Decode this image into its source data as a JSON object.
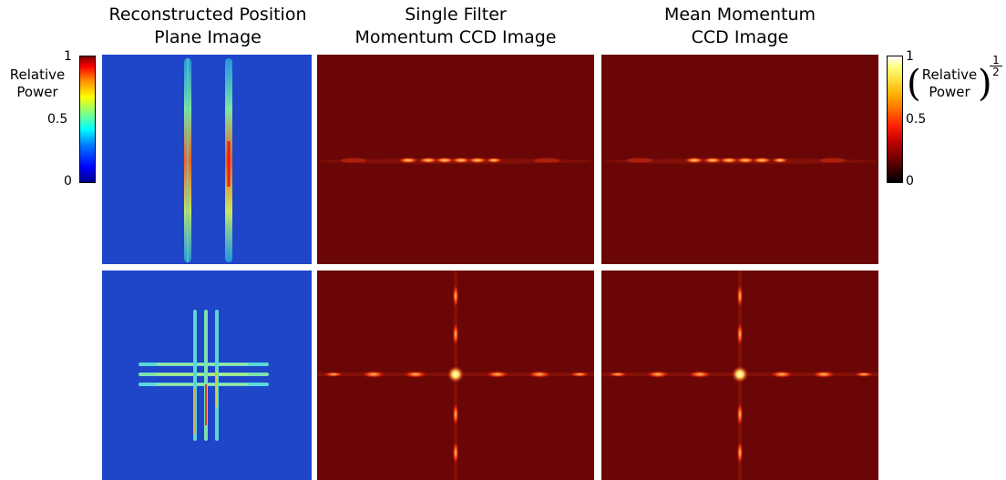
{
  "columns": [
    {
      "title_line1": "Reconstructed Position",
      "title_line2": "Plane Image"
    },
    {
      "title_line1": "Single Filter",
      "title_line2": "Momentum CCD Image"
    },
    {
      "title_line1": "Mean Momentum",
      "title_line2": "CCD Image"
    }
  ],
  "left_colorbar": {
    "label_line1": "Relative",
    "label_line2": "Power",
    "colormap": "jet",
    "ticks": [
      "1",
      "0.5",
      "0"
    ]
  },
  "right_colorbar": {
    "label_line1": "Relative",
    "label_line2": "Power",
    "exponent_num": "1",
    "exponent_den": "2",
    "colormap": "hot",
    "ticks": [
      "1",
      "0.5",
      "0"
    ]
  },
  "rows": [
    {
      "pattern": "two vertical slits"
    },
    {
      "pattern": "three vertical and three horizontal slits (grid cross)"
    }
  ],
  "colors": {
    "jet_background": "#1c3fc4",
    "hot_background": "#6a0606",
    "slit_core": "#ffd23a",
    "slit_edge": "#48d6e8",
    "hot_peak": "#ffe98a"
  }
}
